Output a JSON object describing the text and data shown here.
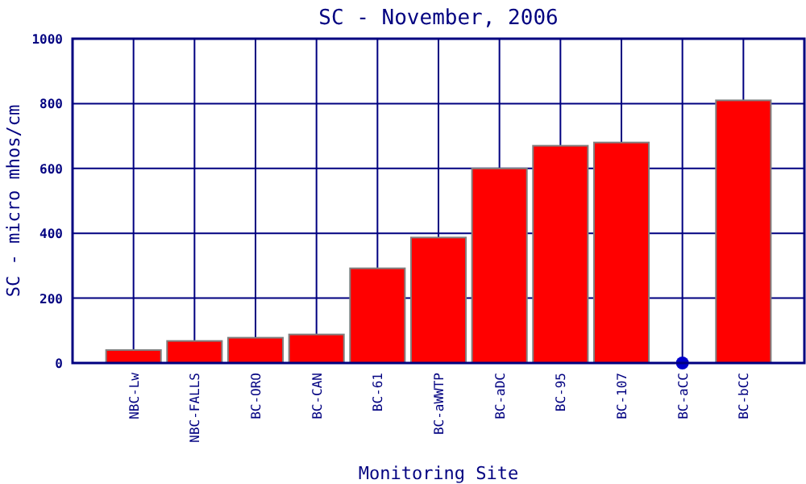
{
  "chart_data": {
    "type": "bar",
    "title": "SC - November, 2006",
    "xlabel": "Monitoring Site",
    "ylabel": "SC - micro mhos/cm",
    "categories": [
      "NBC-Lw",
      "NBC-FALLS",
      "BC-ORO",
      "BC-CAN",
      "BC-61",
      "BC-aWWTP",
      "BC-aDC",
      "BC-95",
      "BC-107",
      "BC-aCC",
      "BC-bCC"
    ],
    "series": [
      {
        "color": "#ff0000",
        "values": [
          40,
          68,
          78,
          88,
          292,
          387,
          600,
          670,
          680,
          null,
          810
        ]
      },
      {
        "type": "scatter",
        "color": "#0000cc",
        "x": [
          "BC-aCC"
        ],
        "values": [
          0
        ]
      }
    ],
    "ylim": [
      0,
      1000
    ],
    "yticks": [
      0,
      200,
      400,
      600,
      800,
      1000
    ],
    "grid": true
  }
}
